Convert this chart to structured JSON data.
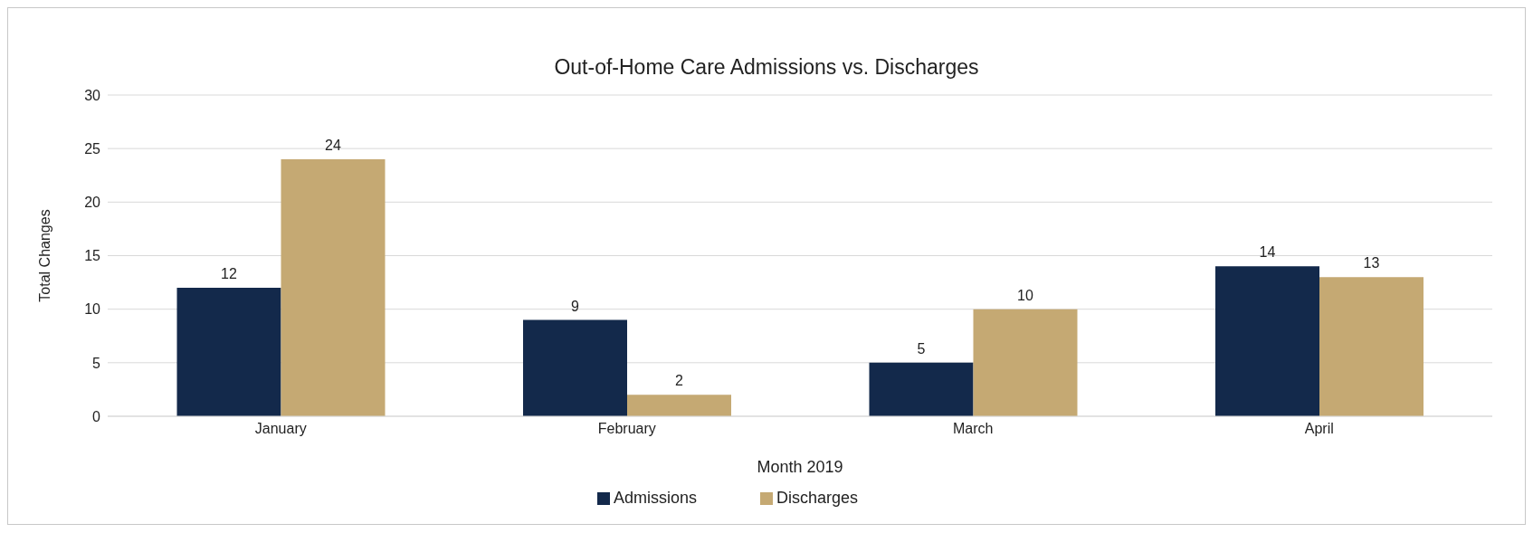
{
  "chart_data": {
    "type": "bar",
    "title": "Out-of-Home Care Admissions vs. Discharges",
    "xlabel": "Month 2019",
    "ylabel": "Total Changes",
    "categories": [
      "January",
      "February",
      "March",
      "April"
    ],
    "series": [
      {
        "name": "Admissions",
        "color": "#13294b",
        "values": [
          12,
          9,
          5,
          14
        ]
      },
      {
        "name": "Discharges",
        "color": "#c5a973",
        "values": [
          24,
          2,
          10,
          13
        ]
      }
    ],
    "ylim": [
      0,
      30
    ],
    "yticks": [
      0,
      5,
      10,
      15,
      20,
      25,
      30
    ],
    "grid": "y",
    "legend": "bottom",
    "data_labels": true
  }
}
